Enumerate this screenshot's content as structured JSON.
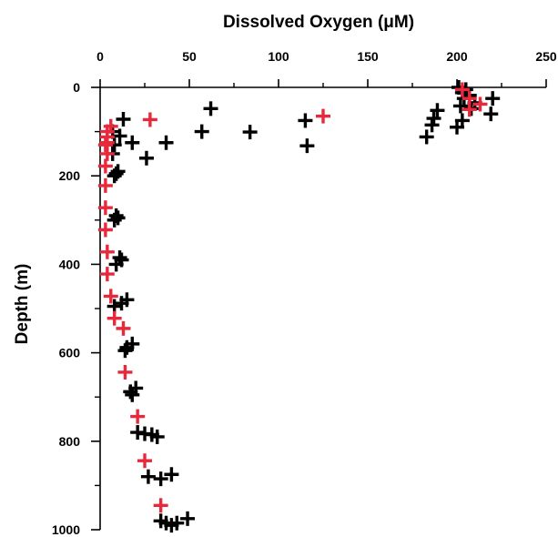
{
  "chart_data": {
    "type": "scatter",
    "title": "",
    "xlabel": "Dissolved Oxygen (μM)",
    "ylabel": "Depth (m)",
    "xlim": [
      0,
      250
    ],
    "ylim": [
      0,
      1000
    ],
    "x_axis_position": "top",
    "y_axis_inverted": true,
    "x_ticks": [
      0,
      50,
      100,
      150,
      200,
      250
    ],
    "y_ticks": [
      0,
      200,
      400,
      600,
      800,
      1000
    ],
    "grid": false,
    "legend": "none",
    "marker": "plus",
    "series": [
      {
        "color": "#000000",
        "points": [
          {
            "x": 201,
            "y": 0
          },
          {
            "x": 205,
            "y": 5
          },
          {
            "x": 203,
            "y": 12
          },
          {
            "x": 207,
            "y": 18
          },
          {
            "x": 204,
            "y": 25
          },
          {
            "x": 220,
            "y": 25
          },
          {
            "x": 210,
            "y": 35
          },
          {
            "x": 202,
            "y": 42
          },
          {
            "x": 208,
            "y": 48
          },
          {
            "x": 189,
            "y": 52
          },
          {
            "x": 219,
            "y": 60
          },
          {
            "x": 187,
            "y": 70
          },
          {
            "x": 203,
            "y": 75
          },
          {
            "x": 186,
            "y": 85
          },
          {
            "x": 200,
            "y": 90
          },
          {
            "x": 183,
            "y": 112
          },
          {
            "x": 62,
            "y": 48
          },
          {
            "x": 115,
            "y": 75
          },
          {
            "x": 13,
            "y": 72
          },
          {
            "x": 57,
            "y": 100
          },
          {
            "x": 84,
            "y": 101
          },
          {
            "x": 7,
            "y": 100
          },
          {
            "x": 11,
            "y": 110
          },
          {
            "x": 18,
            "y": 125
          },
          {
            "x": 37,
            "y": 125
          },
          {
            "x": 8,
            "y": 130
          },
          {
            "x": 116,
            "y": 132
          },
          {
            "x": 26,
            "y": 160
          },
          {
            "x": 7,
            "y": 150
          },
          {
            "x": 9,
            "y": 195
          },
          {
            "x": 10,
            "y": 190
          },
          {
            "x": 8,
            "y": 200
          },
          {
            "x": 9,
            "y": 290
          },
          {
            "x": 10,
            "y": 295
          },
          {
            "x": 8,
            "y": 300
          },
          {
            "x": 11,
            "y": 385
          },
          {
            "x": 12,
            "y": 390
          },
          {
            "x": 9,
            "y": 400
          },
          {
            "x": 15,
            "y": 480
          },
          {
            "x": 12,
            "y": 488
          },
          {
            "x": 8,
            "y": 495
          },
          {
            "x": 18,
            "y": 580
          },
          {
            "x": 15,
            "y": 588
          },
          {
            "x": 14,
            "y": 595
          },
          {
            "x": 20,
            "y": 680
          },
          {
            "x": 17,
            "y": 688
          },
          {
            "x": 18,
            "y": 695
          },
          {
            "x": 21,
            "y": 780
          },
          {
            "x": 25,
            "y": 783
          },
          {
            "x": 29,
            "y": 785
          },
          {
            "x": 32,
            "y": 790
          },
          {
            "x": 40,
            "y": 875
          },
          {
            "x": 34,
            "y": 885
          },
          {
            "x": 27,
            "y": 880
          },
          {
            "x": 49,
            "y": 975
          },
          {
            "x": 34,
            "y": 980
          },
          {
            "x": 37,
            "y": 985
          },
          {
            "x": 40,
            "y": 990
          },
          {
            "x": 43,
            "y": 985
          }
        ]
      },
      {
        "color": "#e8293c",
        "points": [
          {
            "x": 203,
            "y": 5
          },
          {
            "x": 207,
            "y": 25
          },
          {
            "x": 213,
            "y": 38
          },
          {
            "x": 207,
            "y": 50
          },
          {
            "x": 125,
            "y": 65
          },
          {
            "x": 28,
            "y": 73
          },
          {
            "x": 6,
            "y": 88
          },
          {
            "x": 4,
            "y": 100
          },
          {
            "x": 4,
            "y": 112
          },
          {
            "x": 4,
            "y": 125
          },
          {
            "x": 3,
            "y": 130
          },
          {
            "x": 4,
            "y": 150
          },
          {
            "x": 3,
            "y": 178
          },
          {
            "x": 3,
            "y": 222
          },
          {
            "x": 3,
            "y": 272
          },
          {
            "x": 3,
            "y": 322
          },
          {
            "x": 4,
            "y": 372
          },
          {
            "x": 4,
            "y": 422
          },
          {
            "x": 6,
            "y": 472
          },
          {
            "x": 8,
            "y": 522
          },
          {
            "x": 13,
            "y": 545
          },
          {
            "x": 14,
            "y": 644
          },
          {
            "x": 21,
            "y": 744
          },
          {
            "x": 25,
            "y": 844
          },
          {
            "x": 34,
            "y": 945
          }
        ]
      }
    ]
  }
}
